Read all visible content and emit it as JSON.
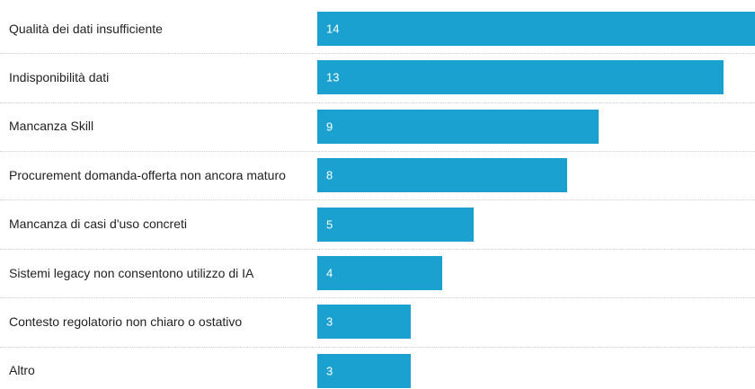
{
  "chart_data": {
    "type": "bar",
    "orientation": "horizontal",
    "categories": [
      "Qualità dei dati insufficiente",
      "Indisponibilità dati",
      "Mancanza Skill",
      "Procurement domanda-offerta non ancora maturo",
      "Mancanza di casi d'uso concreti",
      "Sistemi legacy non consentono utilizzo di IA",
      "Contesto regolatorio non chiaro o ostativo",
      "Altro"
    ],
    "values": [
      14,
      13,
      9,
      8,
      5,
      4,
      3,
      3
    ],
    "xlim": [
      0,
      14
    ],
    "grid": false,
    "bar_color": "#1ba1d0",
    "value_label_color": "#ffffff"
  }
}
